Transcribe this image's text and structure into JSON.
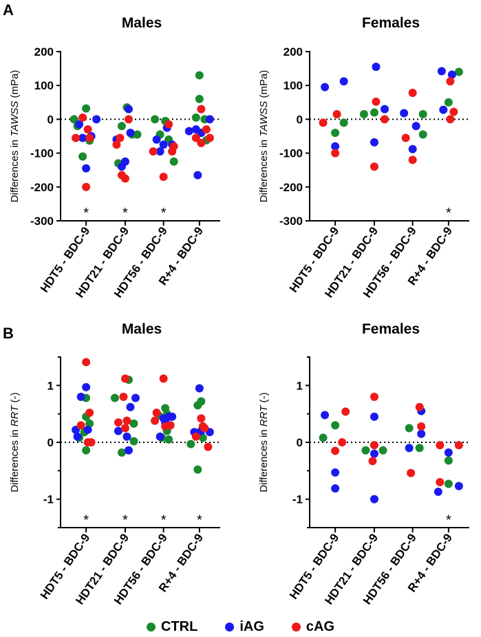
{
  "panel_labels": [
    "A",
    "B"
  ],
  "legend": [
    {
      "label": "CTRL",
      "color": "#1a8a2e"
    },
    {
      "label": "iAG",
      "color": "#1a1aee"
    },
    {
      "label": "cAG",
      "color": "#ee1a1a"
    }
  ],
  "chart_data": [
    {
      "type": "scatter",
      "title": "Males",
      "ylabel_prefix": "Differences in ",
      "ylabel_italic": "TAWSS",
      "ylabel_suffix": " (mPa)",
      "categories": [
        "HDT5 - BDC-9",
        "HDT21 - BDC-9",
        "HDT56 - BDC-9",
        "R+4 - BDC-9"
      ],
      "ylim": [
        -300,
        200
      ],
      "yticks": [
        -300,
        -200,
        -100,
        0,
        100,
        200
      ],
      "ytick_labels": [
        "-300",
        "-200",
        "-100",
        "0",
        "100",
        "200"
      ],
      "zero_line": true,
      "significance": [
        "*",
        "*",
        "*",
        ""
      ],
      "sig_y": -265,
      "series": [
        {
          "name": "CTRL",
          "values": [
            [
              -0.35,
              0
            ],
            [
              -0.25,
              -20
            ],
            [
              0,
              32
            ],
            [
              0.1,
              -63
            ],
            [
              -0.1,
              -110
            ],
            [
              0.2,
              -45
            ],
            [
              0.35,
              -45
            ],
            [
              -0.2,
              -130
            ],
            [
              -0.1,
              -20
            ],
            [
              0.05,
              35
            ],
            [
              0.15,
              -60
            ],
            [
              0.3,
              -125
            ],
            [
              -0.25,
              0
            ],
            [
              -0.1,
              -45
            ],
            [
              0.05,
              -5
            ],
            [
              0.2,
              -62
            ],
            [
              -0.1,
              5
            ],
            [
              0,
              60
            ],
            [
              0,
              130
            ],
            [
              0.15,
              0
            ]
          ]
        },
        {
          "name": "iAG",
          "values": [
            [
              -0.2,
              -15
            ],
            [
              -0.1,
              -55
            ],
            [
              0.15,
              -50
            ],
            [
              0.3,
              0
            ],
            [
              0,
              -145
            ],
            [
              -0.25,
              -60
            ],
            [
              0,
              -125
            ],
            [
              -0.1,
              -140
            ],
            [
              0.1,
              30
            ],
            [
              0.15,
              -40
            ],
            [
              -0.2,
              -60
            ],
            [
              0,
              -75
            ],
            [
              0.1,
              -25
            ],
            [
              -0.1,
              -95
            ],
            [
              0.25,
              -75
            ],
            [
              -0.3,
              -35
            ],
            [
              0.05,
              -40
            ],
            [
              -0.1,
              -30
            ],
            [
              0.3,
              0
            ],
            [
              -0.05,
              -165
            ]
          ]
        },
        {
          "name": "cAG",
          "values": [
            [
              -0.3,
              -55
            ],
            [
              -0.1,
              5
            ],
            [
              0.05,
              -30
            ],
            [
              0.1,
              -55
            ],
            [
              0,
              -200
            ],
            [
              -0.25,
              -75
            ],
            [
              -0.15,
              -55
            ],
            [
              -0.1,
              -165
            ],
            [
              0,
              -175
            ],
            [
              0.1,
              0
            ],
            [
              -0.3,
              -95
            ],
            [
              0.3,
              -80
            ],
            [
              0.15,
              -15
            ],
            [
              0.25,
              -95
            ],
            [
              0,
              -170
            ],
            [
              0.05,
              30
            ],
            [
              0.2,
              -30
            ],
            [
              -0.1,
              -55
            ],
            [
              0.05,
              -70
            ],
            [
              0.3,
              -55
            ]
          ]
        }
      ]
    },
    {
      "type": "scatter",
      "title": "Females",
      "ylabel_prefix": "Differences in ",
      "ylabel_italic": "TAWSS",
      "ylabel_suffix": " (mPa)",
      "categories": [
        "HDT5 - BDC-9",
        "HDT21 - BDC-9",
        "HDT56 - BDC-9",
        "R+4 - BDC-9"
      ],
      "ylim": [
        -300,
        200
      ],
      "yticks": [
        -300,
        -200,
        -100,
        0,
        100,
        200
      ],
      "ytick_labels": [
        "-300",
        "-200",
        "-100",
        "0",
        "100",
        "200"
      ],
      "zero_line": true,
      "significance": [
        "",
        "",
        "",
        "*"
      ],
      "sig_y": -265,
      "series": [
        {
          "name": "CTRL",
          "values": [
            [
              0,
              -40
            ],
            [
              0.25,
              -10
            ],
            [
              -0.3,
              15
            ],
            [
              0,
              20
            ],
            [
              0.3,
              15
            ],
            [
              0.3,
              -45
            ],
            [
              0,
              50
            ],
            [
              0.3,
              140
            ]
          ]
        },
        {
          "name": "iAG",
          "values": [
            [
              -0.3,
              95
            ],
            [
              0.25,
              112
            ],
            [
              0,
              -80
            ],
            [
              0.05,
              155
            ],
            [
              0,
              -68
            ],
            [
              0.3,
              30
            ],
            [
              -0.25,
              18
            ],
            [
              0.1,
              -20
            ],
            [
              0,
              -88
            ],
            [
              -0.2,
              142
            ],
            [
              0.1,
              132
            ],
            [
              -0.15,
              28
            ]
          ]
        },
        {
          "name": "cAG",
          "values": [
            [
              -0.35,
              -10
            ],
            [
              0.05,
              15
            ],
            [
              0,
              -100
            ],
            [
              0.05,
              52
            ],
            [
              0.3,
              0
            ],
            [
              0,
              -140
            ],
            [
              -0.2,
              -55
            ],
            [
              0,
              78
            ],
            [
              0,
              -120
            ],
            [
              0.05,
              112
            ],
            [
              0.15,
              22
            ],
            [
              0.05,
              0
            ]
          ]
        }
      ]
    },
    {
      "type": "scatter",
      "title": "Males",
      "ylabel_prefix": "Differences in ",
      "ylabel_italic": "RRT",
      "ylabel_suffix": " (-)",
      "categories": [
        "HDT5 - BDC-9",
        "HDT21 - BDC-9",
        "HDT56 - BDC-9",
        "R+4 - BDC-9"
      ],
      "ylim": [
        -1.5,
        1.5
      ],
      "yticks": [
        -1,
        0,
        1
      ],
      "ytick_labels": [
        "-1",
        "0",
        "1"
      ],
      "minor_yticks": [
        -1.5,
        -0.5,
        0.5,
        1.5
      ],
      "zero_line": true,
      "significance": [
        "*",
        "*",
        "*",
        "*"
      ],
      "sig_y": -1.3,
      "series": [
        {
          "name": "CTRL",
          "values": [
            [
              0,
              0.78
            ],
            [
              0,
              0.45
            ],
            [
              0.1,
              0.33
            ],
            [
              -0.2,
              0.08
            ],
            [
              -0.05,
              0.18
            ],
            [
              0,
              -0.14
            ],
            [
              0.25,
              0.02
            ],
            [
              -0.3,
              0.78
            ],
            [
              0.1,
              1.1
            ],
            [
              0.25,
              0.33
            ],
            [
              -0.1,
              -0.18
            ],
            [
              0.1,
              0.5
            ],
            [
              0.05,
              0.6
            ],
            [
              -0.15,
              0.48
            ],
            [
              0.1,
              0.2
            ],
            [
              -0.05,
              0.08
            ],
            [
              0.15,
              0.05
            ],
            [
              -0.25,
              -0.03
            ],
            [
              -0.05,
              0.65
            ],
            [
              0.05,
              0.72
            ],
            [
              0.1,
              0.08
            ],
            [
              -0.05,
              -0.48
            ]
          ]
        },
        {
          "name": "iAG",
          "values": [
            [
              0,
              0.97
            ],
            [
              -0.3,
              0.22
            ],
            [
              0.05,
              0.22
            ],
            [
              -0.25,
              0.1
            ],
            [
              -0.15,
              0.8
            ],
            [
              0.15,
              0.62
            ],
            [
              0.3,
              0.78
            ],
            [
              0.05,
              0.1
            ],
            [
              0.1,
              -0.14
            ],
            [
              -0.2,
              0.2
            ],
            [
              0.05,
              0.35
            ],
            [
              0,
              0.42
            ],
            [
              0.15,
              0.45
            ],
            [
              0.25,
              0.45
            ],
            [
              -0.1,
              0.1
            ],
            [
              0,
              0.95
            ],
            [
              -0.15,
              0.18
            ],
            [
              0.05,
              0.2
            ],
            [
              0.3,
              0.18
            ]
          ]
        },
        {
          "name": "cAG",
          "values": [
            [
              0,
              1.41
            ],
            [
              -0.15,
              0.3
            ],
            [
              0.1,
              0.52
            ],
            [
              0.05,
              0
            ],
            [
              0.15,
              0
            ],
            [
              0,
              1.12
            ],
            [
              -0.05,
              0.8
            ],
            [
              0.05,
              0.38
            ],
            [
              -0.2,
              0.35
            ],
            [
              0,
              0.25
            ],
            [
              -0.2,
              0.52
            ],
            [
              0,
              1.12
            ],
            [
              -0.25,
              0.38
            ],
            [
              0.05,
              0.28
            ],
            [
              0.2,
              0.3
            ],
            [
              -0.1,
              0.1
            ],
            [
              0.05,
              0.42
            ],
            [
              0.15,
              0.25
            ],
            [
              0.25,
              -0.08
            ],
            [
              0.1,
              0.28
            ]
          ]
        }
      ]
    },
    {
      "type": "scatter",
      "title": "Females",
      "ylabel_prefix": "Differences in ",
      "ylabel_italic": "RRT",
      "ylabel_suffix": " (-)",
      "categories": [
        "HDT5 - BDC-9",
        "HDT21 - BDC-9",
        "HDT56 - BDC-9",
        "R+4 - BDC-9"
      ],
      "ylim": [
        -1.5,
        1.5
      ],
      "yticks": [
        -1,
        0,
        1
      ],
      "ytick_labels": [
        "-1",
        "0",
        "1"
      ],
      "minor_yticks": [
        -1.5,
        -0.5,
        0.5,
        1.5
      ],
      "zero_line": true,
      "significance": [
        "",
        "",
        "",
        "*"
      ],
      "sig_y": -1.3,
      "series": [
        {
          "name": "CTRL",
          "values": [
            [
              -0.35,
              0.08
            ],
            [
              0,
              0.3
            ],
            [
              -0.25,
              -0.14
            ],
            [
              0.25,
              -0.14
            ],
            [
              -0.1,
              0.25
            ],
            [
              0.2,
              -0.1
            ],
            [
              0,
              -0.32
            ],
            [
              0,
              -0.73
            ]
          ]
        },
        {
          "name": "iAG",
          "values": [
            [
              -0.3,
              0.48
            ],
            [
              0,
              -0.53
            ],
            [
              0,
              -0.81
            ],
            [
              0,
              0.45
            ],
            [
              0,
              -0.2
            ],
            [
              0,
              -1.0
            ],
            [
              -0.1,
              -0.1
            ],
            [
              0.25,
              0.55
            ],
            [
              0.25,
              0.15
            ],
            [
              -0.3,
              -0.87
            ],
            [
              0,
              -0.18
            ],
            [
              0.3,
              -0.77
            ]
          ]
        },
        {
          "name": "cAG",
          "values": [
            [
              0.3,
              0.54
            ],
            [
              0,
              -0.15
            ],
            [
              0.2,
              0
            ],
            [
              0,
              0.8
            ],
            [
              0,
              -0.05
            ],
            [
              -0.05,
              -0.33
            ],
            [
              0.2,
              0.62
            ],
            [
              0.25,
              0.28
            ],
            [
              -0.05,
              -0.54
            ],
            [
              -0.25,
              -0.05
            ],
            [
              -0.25,
              -0.7
            ],
            [
              0.3,
              -0.05
            ]
          ]
        }
      ]
    }
  ]
}
